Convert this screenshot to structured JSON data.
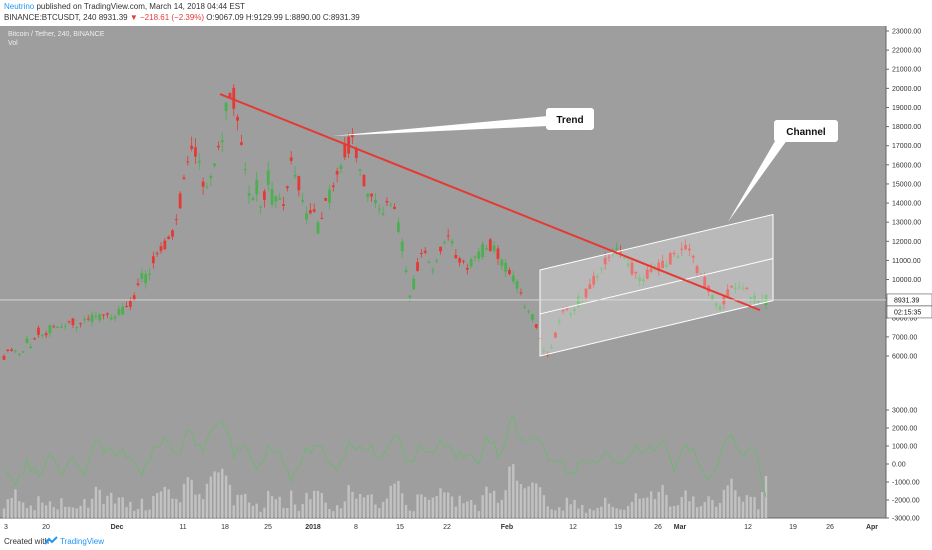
{
  "header": {
    "author": "Neutrino",
    "published": "published on TradingView.com, March 14, 2018 04:44 EST",
    "symbol": "BINANCE:BTCUSDT, 240",
    "last": "8931.39",
    "change": "▼ −218.61 (−2.39%)",
    "ohlc": "O:9067.09 H:9129.99 L:8890.00 C:8931.39"
  },
  "chart": {
    "pair_title": "Bitcoin / Tether, 240, BINANCE",
    "vol_label": "Vol",
    "price_tag": "8931.39",
    "timer_tag": "02:15:35",
    "annotations": {
      "trend": "Trend",
      "channel": "Channel"
    }
  },
  "footer": {
    "created_with": "Created with",
    "brand": "TradingView"
  },
  "colors": {
    "up": "#4caf50",
    "down": "#e53935",
    "background": "#9e9e9e",
    "trend": "#e53935"
  },
  "chart_data": {
    "type": "candlestick",
    "title": "Bitcoin / Tether, 240, BINANCE",
    "price_axis": {
      "ticks": [
        6000,
        7000,
        8000,
        9000,
        10000,
        11000,
        12000,
        13000,
        14000,
        15000,
        16000,
        17000,
        18000,
        19000,
        20000,
        21000,
        22000,
        23000
      ],
      "range": [
        5300,
        23500
      ],
      "tick_labels": [
        "6000.00",
        "7000.00",
        "8000.00",
        "9000.00",
        "10000.00",
        "11000.00",
        "12000.00",
        "13000.00",
        "14000.00",
        "15000.00",
        "16000.00",
        "17000.00",
        "18000.00",
        "19000.00",
        "20000.00",
        "21000.00",
        "22000.00",
        "23000.00"
      ]
    },
    "volume_axis": {
      "ticks": [
        -3000,
        -2000,
        -1000,
        0,
        1000,
        2000,
        3000
      ],
      "range": [
        -3000,
        3500
      ],
      "tick_labels": [
        "-3000.00",
        "-2000.00",
        "-1000.00",
        "0.00",
        "1000.00",
        "2000.00",
        "3000.00"
      ]
    },
    "time_axis": {
      "labels": [
        "3",
        "20",
        "Dec",
        "11",
        "18",
        "25",
        "2018",
        "8",
        "15",
        "22",
        "Feb",
        "12",
        "19",
        "26",
        "Mar",
        "12",
        "19",
        "26",
        "Apr"
      ]
    },
    "price_path": [
      [
        5900,
        6300
      ],
      [
        6300,
        6100
      ],
      [
        6800,
        6500
      ],
      [
        7300,
        7000
      ],
      [
        7400,
        7600
      ],
      [
        7600,
        7700
      ],
      [
        7800,
        7500
      ],
      [
        8000,
        7900
      ],
      [
        8100,
        8000
      ],
      [
        8200,
        8100
      ],
      [
        8300,
        8400
      ],
      [
        8700,
        9200
      ],
      [
        10200,
        10000
      ],
      [
        11000,
        11500
      ],
      [
        11800,
        12000
      ],
      [
        13000,
        14500
      ],
      [
        16000,
        16800
      ],
      [
        16500,
        14500
      ],
      [
        15500,
        16500
      ],
      [
        17200,
        19600
      ],
      [
        19700,
        17500
      ],
      [
        16000,
        14000
      ],
      [
        15000,
        13500
      ],
      [
        15500,
        14000
      ],
      [
        14500,
        13500
      ],
      [
        16000,
        15500
      ],
      [
        14500,
        13000
      ],
      [
        13500,
        12500
      ],
      [
        13800,
        14500
      ],
      [
        15000,
        16500
      ],
      [
        17000,
        17200
      ],
      [
        16000,
        15000
      ],
      [
        14500,
        14000
      ],
      [
        13500,
        14000
      ],
      [
        14000,
        12500
      ],
      [
        11000,
        9000
      ],
      [
        10500,
        11500
      ],
      [
        11000,
        10500
      ],
      [
        11500,
        12000
      ],
      [
        12500,
        11000
      ],
      [
        11000,
        10500
      ],
      [
        11200,
        11300
      ],
      [
        11700,
        11800
      ],
      [
        11500,
        10800
      ],
      [
        10500,
        10000
      ],
      [
        9500,
        8500
      ],
      [
        8200,
        7500
      ],
      [
        6500,
        6000
      ],
      [
        6800,
        8000
      ],
      [
        8500,
        8200
      ],
      [
        8800,
        9000
      ],
      [
        9500,
        10000
      ],
      [
        10500,
        11000
      ],
      [
        11300,
        11700
      ],
      [
        11300,
        11000
      ],
      [
        10300,
        10000
      ],
      [
        10200,
        10500
      ],
      [
        10600,
        10800
      ],
      [
        11000,
        11300
      ],
      [
        11500,
        11700
      ],
      [
        11200,
        10500
      ],
      [
        10000,
        9500
      ],
      [
        8800,
        8500
      ],
      [
        9200,
        9500
      ],
      [
        9800,
        9600
      ],
      [
        9300,
        9000
      ],
      [
        9000,
        8931
      ]
    ],
    "volume_path": [
      100,
      -1200,
      200,
      -900,
      500,
      -600,
      300,
      -400,
      1200,
      600,
      900,
      300,
      -500,
      800,
      1400,
      400,
      2100,
      700,
      1600,
      2300,
      500,
      900,
      -300,
      1200,
      400,
      -800,
      600,
      1000,
      300,
      -400,
      1300,
      900,
      700,
      200,
      2200,
      -200,
      900,
      300,
      1200,
      700,
      500,
      100,
      1500,
      300,
      2700,
      1100,
      1700,
      600,
      400,
      -600,
      200,
      100,
      800,
      300,
      400,
      900,
      700,
      1300,
      -500,
      900,
      400,
      -1100,
      600,
      1700,
      300,
      1200,
      -1800
    ],
    "trend_line": {
      "from": {
        "time": "Dec 18",
        "price": 19700
      },
      "to": {
        "time": "Mar 12",
        "price": 8400
      }
    },
    "channel": {
      "start_time": "Feb 6",
      "end_time": "Mar 16",
      "lower": [
        6000,
        8900
      ],
      "middle": [
        8200,
        11100
      ],
      "upper": [
        10500,
        13400
      ]
    },
    "current_price": 8931.39,
    "grid": false,
    "legend": "none"
  }
}
